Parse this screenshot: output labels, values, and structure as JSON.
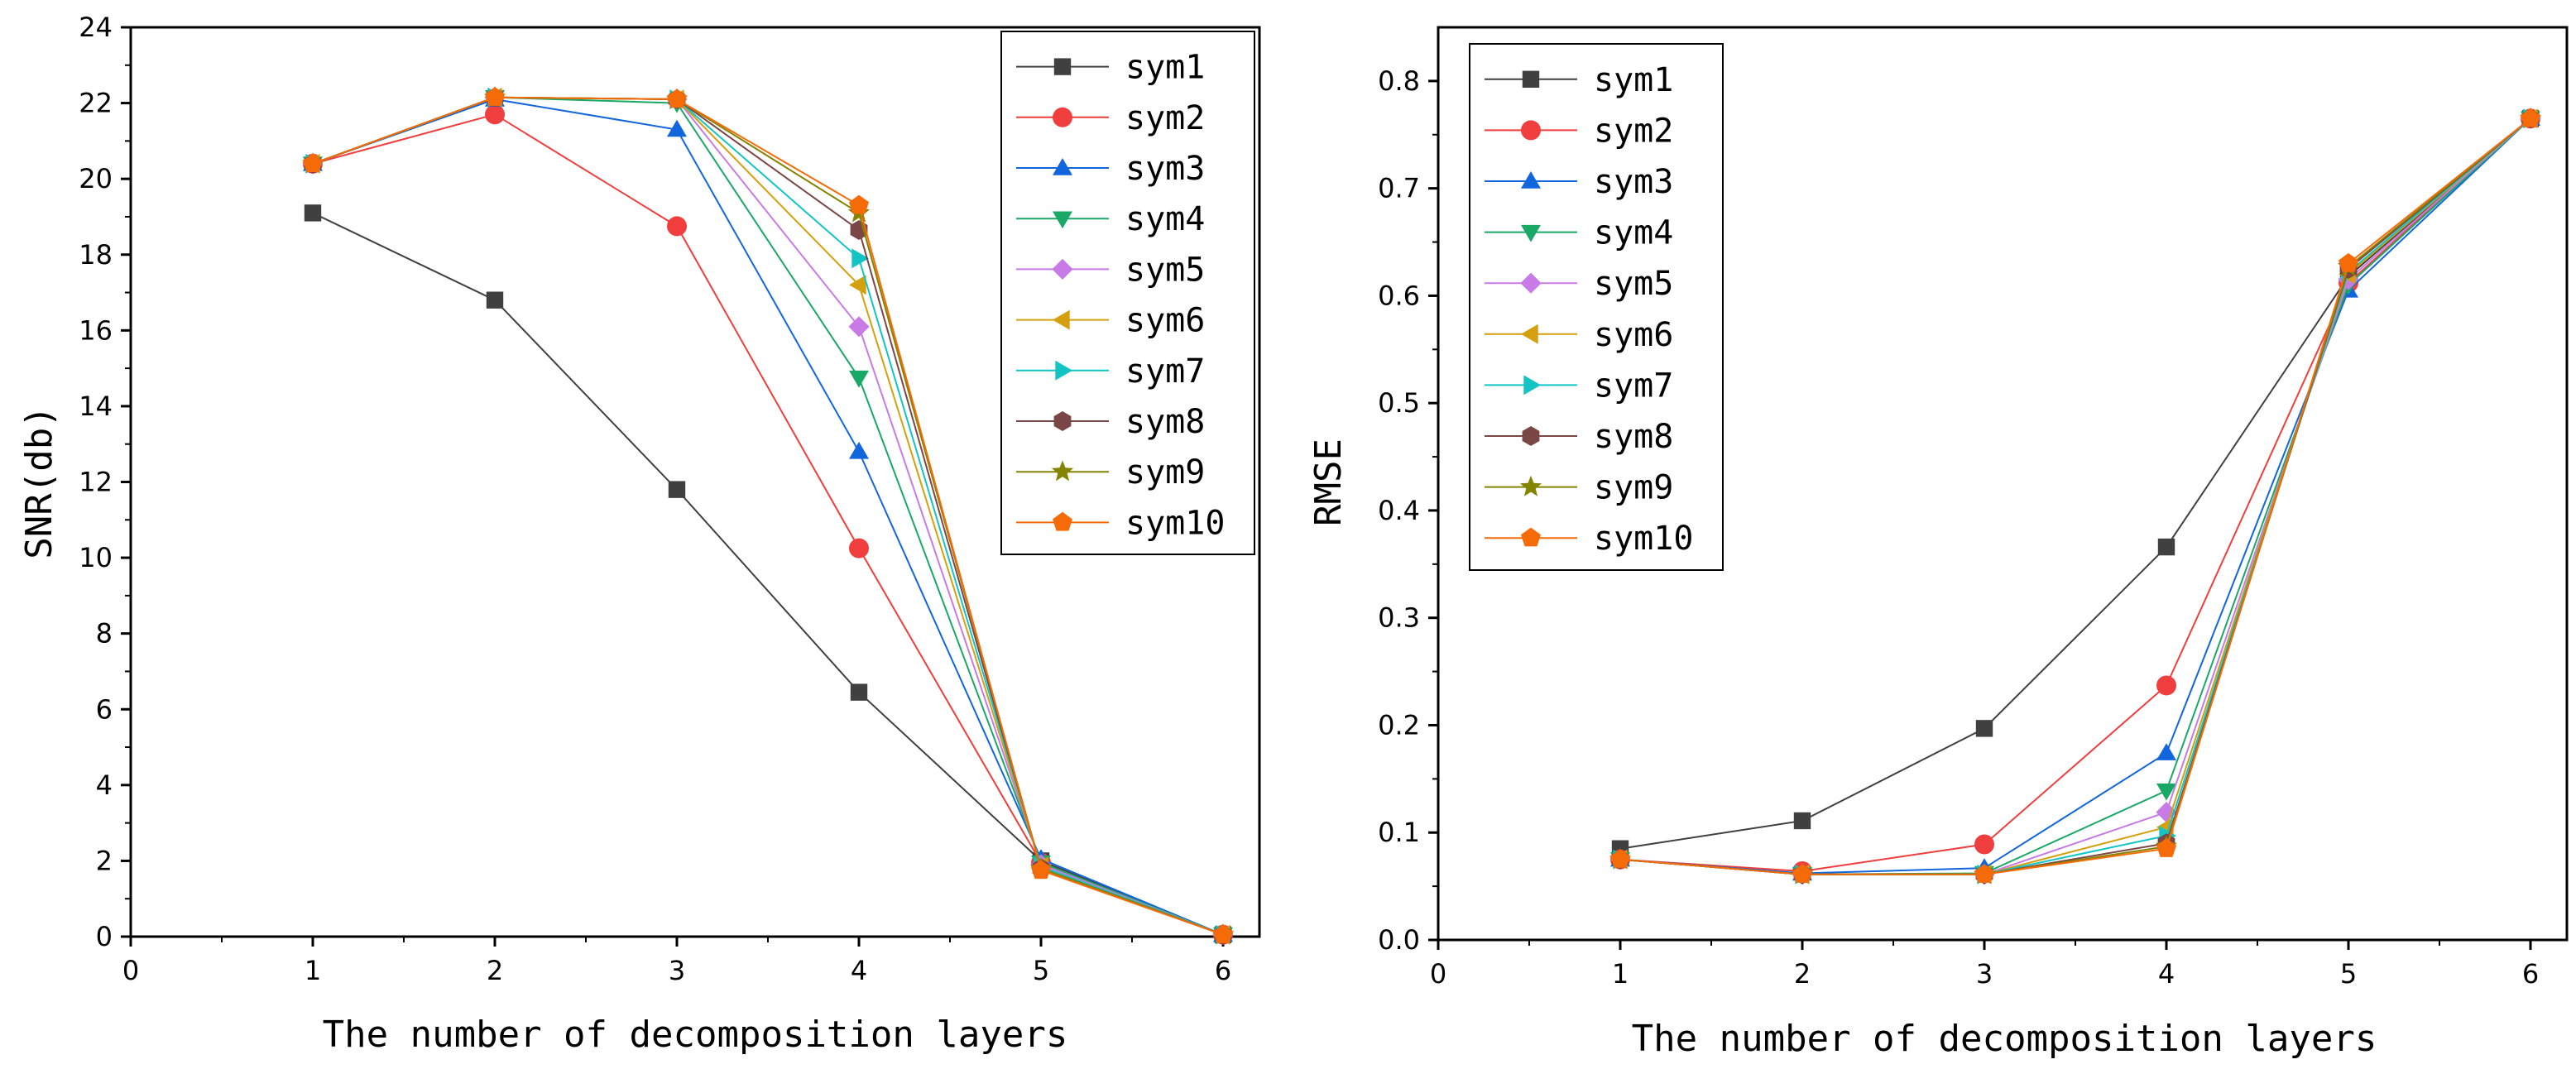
{
  "chart_data": [
    {
      "type": "line",
      "xlabel": "The number of decomposition layers",
      "ylabel": "SNR(db)",
      "xlim": [
        0,
        6.2
      ],
      "ylim": [
        0,
        24
      ],
      "xticks": [
        "0",
        "1",
        "2",
        "3",
        "4",
        "5",
        "6"
      ],
      "yticks": [
        "0",
        "2",
        "4",
        "6",
        "8",
        "10",
        "12",
        "14",
        "16",
        "18",
        "20",
        "22",
        "24"
      ],
      "legend": "top-right",
      "grid": false,
      "x": [
        1,
        2,
        3,
        4,
        5,
        6
      ],
      "series": [
        {
          "name": "sym1",
          "color": "#404040",
          "marker": "square",
          "values": [
            19.1,
            16.8,
            11.8,
            6.45,
            2.0,
            0.05
          ]
        },
        {
          "name": "sym2",
          "color": "#f03e3e",
          "marker": "circle",
          "values": [
            20.4,
            21.7,
            18.75,
            10.25,
            1.95,
            0.05
          ]
        },
        {
          "name": "sym3",
          "color": "#1166dd",
          "marker": "triangle-up",
          "values": [
            20.4,
            22.1,
            21.3,
            12.8,
            2.05,
            0.05
          ]
        },
        {
          "name": "sym4",
          "color": "#1aa866",
          "marker": "triangle-down",
          "values": [
            20.4,
            22.15,
            22.0,
            14.75,
            1.95,
            0.05
          ]
        },
        {
          "name": "sym5",
          "color": "#c87ae6",
          "marker": "diamond",
          "values": [
            20.4,
            22.15,
            22.1,
            16.1,
            1.9,
            0.05
          ]
        },
        {
          "name": "sym6",
          "color": "#d4a010",
          "marker": "triangle-left",
          "values": [
            20.4,
            22.15,
            22.1,
            17.2,
            1.85,
            0.05
          ]
        },
        {
          "name": "sym7",
          "color": "#12c4c4",
          "marker": "triangle-right",
          "values": [
            20.4,
            22.15,
            22.1,
            17.9,
            1.85,
            0.05
          ]
        },
        {
          "name": "sym8",
          "color": "#7a4646",
          "marker": "hexagon",
          "values": [
            20.4,
            22.15,
            22.1,
            18.65,
            1.8,
            0.05
          ]
        },
        {
          "name": "sym9",
          "color": "#848400",
          "marker": "star",
          "values": [
            20.4,
            22.15,
            22.1,
            19.1,
            1.8,
            0.05
          ]
        },
        {
          "name": "sym10",
          "color": "#f46b08",
          "marker": "pentagon",
          "values": [
            20.4,
            22.15,
            22.1,
            19.3,
            1.75,
            0.05
          ]
        }
      ]
    },
    {
      "type": "line",
      "xlabel": "The number of decomposition layers",
      "ylabel": "RMSE",
      "xlim": [
        0,
        6.2
      ],
      "ylim": [
        0,
        0.85
      ],
      "xticks": [
        "0",
        "1",
        "2",
        "3",
        "4",
        "5",
        "6"
      ],
      "yticks": [
        "0.0",
        "0.1",
        "0.2",
        "0.3",
        "0.4",
        "0.5",
        "0.6",
        "0.7",
        "0.8"
      ],
      "legend": "top-left",
      "grid": false,
      "x": [
        1,
        2,
        3,
        4,
        5,
        6
      ],
      "series": [
        {
          "name": "sym1",
          "color": "#404040",
          "marker": "square",
          "values": [
            0.085,
            0.111,
            0.197,
            0.366,
            0.618,
            0.765
          ]
        },
        {
          "name": "sym2",
          "color": "#f03e3e",
          "marker": "circle",
          "values": [
            0.075,
            0.064,
            0.089,
            0.237,
            0.612,
            0.765
          ]
        },
        {
          "name": "sym3",
          "color": "#1166dd",
          "marker": "triangle-up",
          "values": [
            0.075,
            0.062,
            0.067,
            0.174,
            0.605,
            0.765
          ]
        },
        {
          "name": "sym4",
          "color": "#1aa866",
          "marker": "triangle-down",
          "values": [
            0.075,
            0.061,
            0.062,
            0.139,
            0.61,
            0.765
          ]
        },
        {
          "name": "sym5",
          "color": "#c87ae6",
          "marker": "diamond",
          "values": [
            0.075,
            0.061,
            0.061,
            0.119,
            0.615,
            0.765
          ]
        },
        {
          "name": "sym6",
          "color": "#d4a010",
          "marker": "triangle-left",
          "values": [
            0.075,
            0.061,
            0.061,
            0.105,
            0.62,
            0.765
          ]
        },
        {
          "name": "sym7",
          "color": "#12c4c4",
          "marker": "triangle-right",
          "values": [
            0.075,
            0.061,
            0.061,
            0.097,
            0.622,
            0.765
          ]
        },
        {
          "name": "sym8",
          "color": "#7a4646",
          "marker": "hexagon",
          "values": [
            0.075,
            0.061,
            0.061,
            0.09,
            0.625,
            0.765
          ]
        },
        {
          "name": "sym9",
          "color": "#848400",
          "marker": "star",
          "values": [
            0.075,
            0.061,
            0.061,
            0.087,
            0.627,
            0.765
          ]
        },
        {
          "name": "sym10",
          "color": "#f46b08",
          "marker": "pentagon",
          "values": [
            0.075,
            0.061,
            0.061,
            0.085,
            0.63,
            0.765
          ]
        }
      ]
    }
  ]
}
